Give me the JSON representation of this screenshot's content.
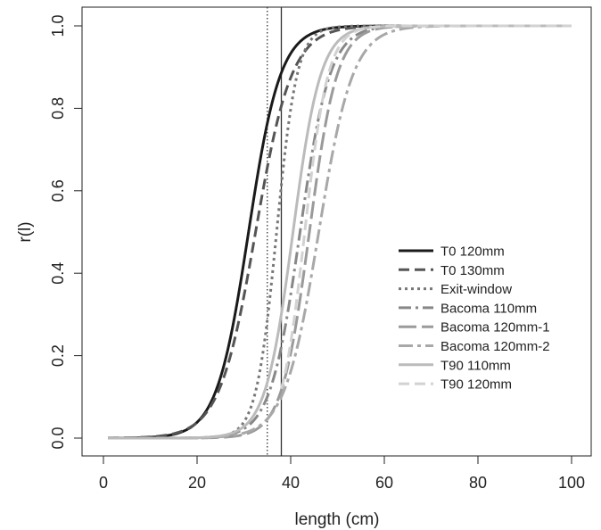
{
  "chart_data": {
    "type": "line",
    "title": "",
    "xlabel": "length (cm)",
    "ylabel": "r(l)",
    "xlim": [
      0,
      100
    ],
    "ylim": [
      0,
      1
    ],
    "x_ticks": [
      0,
      20,
      40,
      60,
      80,
      100
    ],
    "y_ticks": [
      0.0,
      0.2,
      0.4,
      0.6,
      0.8,
      1.0
    ],
    "x_tick_labels": [
      "0",
      "20",
      "40",
      "60",
      "80",
      "100"
    ],
    "y_tick_labels": [
      "0.0",
      "0.2",
      "0.4",
      "0.6",
      "0.8",
      "1.0"
    ],
    "grid": false,
    "legend_position": "right-middle",
    "reference_lines": [
      {
        "name": "dotted-vertical-line",
        "x": 35,
        "style": "dotted",
        "color": "#333333"
      },
      {
        "name": "solid-vertical-line",
        "x": 38,
        "style": "solid",
        "color": "#333333"
      }
    ],
    "series": [
      {
        "name": "T0 120mm",
        "color": "#1a1a1a",
        "dash": "",
        "l50": 31,
        "sr": 7.5,
        "xmin": 1,
        "xmax": 100,
        "width": 3
      },
      {
        "name": "T0 130mm",
        "color": "#555555",
        "dash": "12,6",
        "l50": 32.5,
        "sr": 8.5,
        "xmin": 1,
        "xmax": 100,
        "width": 3
      },
      {
        "name": "Exit-window",
        "color": "#777777",
        "dash": "3,4",
        "l50": 37,
        "sr": 4.8,
        "xmin": 1,
        "xmax": 100,
        "width": 3
      },
      {
        "name": "Bacoma 110mm",
        "color": "#888888",
        "dash": "14,5,3,5",
        "l50": 42,
        "sr": 7,
        "xmin": 1,
        "xmax": 100,
        "width": 3
      },
      {
        "name": "Bacoma 120mm-1",
        "color": "#9a9a9a",
        "dash": "20,6",
        "l50": 44,
        "sr": 6.5,
        "xmin": 1,
        "xmax": 100,
        "width": 3
      },
      {
        "name": "Bacoma 120mm-2",
        "color": "#a8a8a8",
        "dash": "16,5,4,5",
        "l50": 46,
        "sr": 8,
        "xmin": 1,
        "xmax": 100,
        "width": 3
      },
      {
        "name": "T90 110mm",
        "color": "#bbbbbb",
        "dash": "",
        "l50": 40.5,
        "sr": 6.5,
        "xmin": 1,
        "xmax": 100,
        "width": 3
      },
      {
        "name": "T90 120mm",
        "color": "#d2d2d2",
        "dash": "12,6",
        "l50": 43,
        "sr": 5.5,
        "xmin": 38,
        "xmax": 100,
        "width": 3
      }
    ]
  }
}
